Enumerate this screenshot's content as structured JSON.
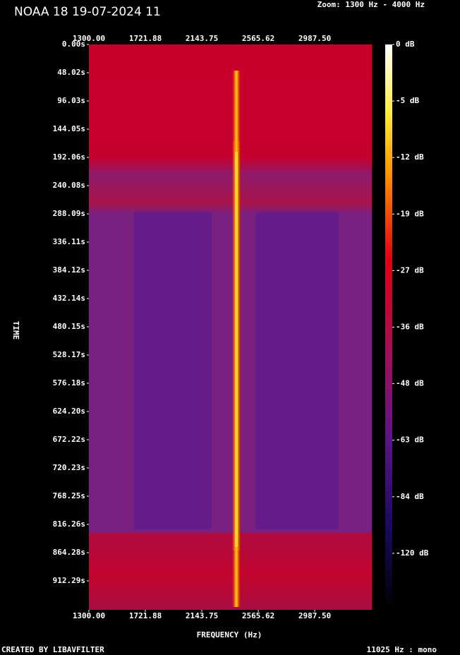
{
  "chart_data": {
    "type": "spectrogram",
    "title": "NOAA 18 19-07-2024 11",
    "subtitle": "Zoom: 1300 Hz - 4000 Hz",
    "xlabel": "FREQUENCY (Hz)",
    "ylabel": "TIME",
    "footer_left": "CREATED BY LIBAVFILTER",
    "footer_right": "11025 Hz : mono",
    "xlim": [
      1300,
      3414
    ],
    "xticks": [
      {
        "value": 1300,
        "label": "1300.00"
      },
      {
        "value": 1721.88,
        "label": "1721.88"
      },
      {
        "value": 2143.75,
        "label": "2143.75"
      },
      {
        "value": 2565.62,
        "label": "2565.62"
      },
      {
        "value": 2987.5,
        "label": "2987.50"
      }
    ],
    "ylim": [
      0,
      961.6
    ],
    "yticks": [
      {
        "value": 0,
        "label": "0.00s"
      },
      {
        "value": 48.02,
        "label": "48.02s"
      },
      {
        "value": 96.03,
        "label": "96.03s"
      },
      {
        "value": 144.05,
        "label": "144.05s"
      },
      {
        "value": 192.06,
        "label": "192.06s"
      },
      {
        "value": 240.08,
        "label": "240.08s"
      },
      {
        "value": 288.09,
        "label": "288.09s"
      },
      {
        "value": 336.11,
        "label": "336.11s"
      },
      {
        "value": 384.12,
        "label": "384.12s"
      },
      {
        "value": 432.14,
        "label": "432.14s"
      },
      {
        "value": 480.15,
        "label": "480.15s"
      },
      {
        "value": 528.17,
        "label": "528.17s"
      },
      {
        "value": 576.18,
        "label": "576.18s"
      },
      {
        "value": 624.2,
        "label": "624.20s"
      },
      {
        "value": 672.22,
        "label": "672.22s"
      },
      {
        "value": 720.23,
        "label": "720.23s"
      },
      {
        "value": 768.25,
        "label": "768.25s"
      },
      {
        "value": 816.26,
        "label": "816.26s"
      },
      {
        "value": 864.28,
        "label": "864.28s"
      },
      {
        "value": 912.29,
        "label": "912.29s"
      }
    ],
    "colorbar_ticks": [
      {
        "value": 0,
        "label": "0 dB"
      },
      {
        "value": -5,
        "label": "-5 dB"
      },
      {
        "value": -12,
        "label": "-12 dB"
      },
      {
        "value": -19,
        "label": "-19 dB"
      },
      {
        "value": -27,
        "label": "-27 dB"
      },
      {
        "value": -36,
        "label": "-36 dB"
      },
      {
        "value": -48,
        "label": "-48 dB"
      },
      {
        "value": -63,
        "label": "-63 dB"
      },
      {
        "value": -84,
        "label": "-84 dB"
      },
      {
        "value": -120,
        "label": "-120 dB"
      }
    ]
  }
}
